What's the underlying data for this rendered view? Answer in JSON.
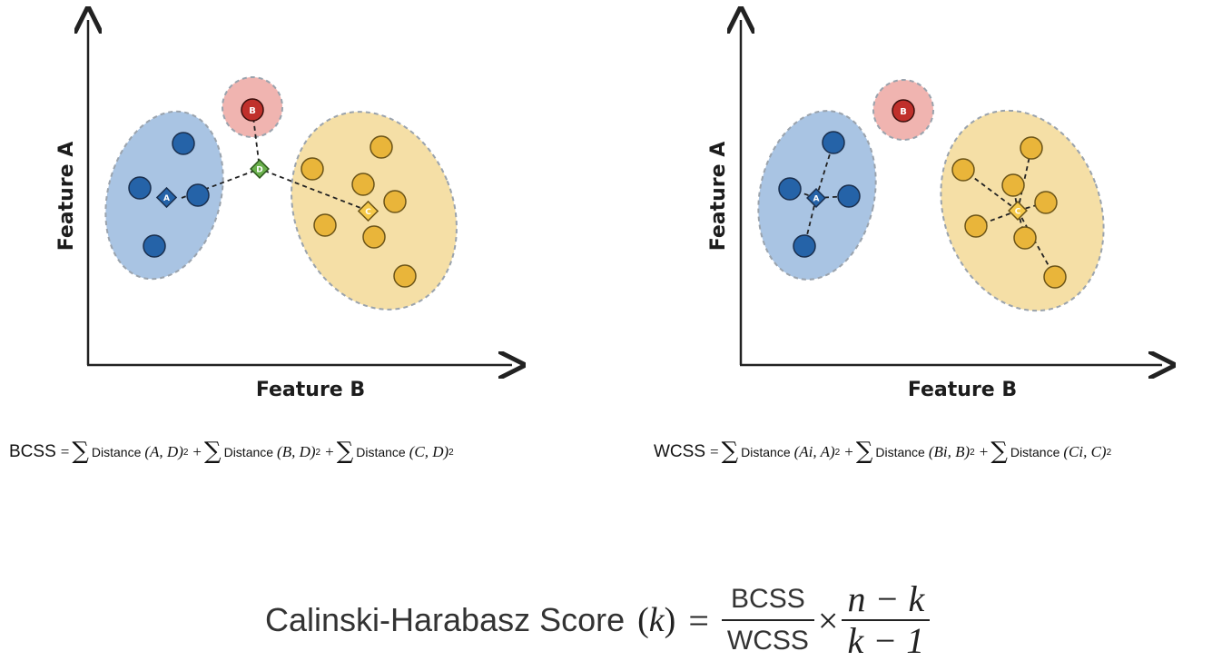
{
  "left_panel": {
    "x_axis_title": "Feature B",
    "y_axis_title": "Feature A",
    "labels": {
      "a": "A",
      "b": "B",
      "c": "C",
      "d": "D"
    }
  },
  "right_panel": {
    "x_axis_title": "Feature B",
    "y_axis_title": "Feature A",
    "labels": {
      "a": "A",
      "b": "B",
      "c": "C"
    }
  },
  "colors": {
    "blue_cluster": "#2563a8",
    "blue_fill": "#a9c4e3",
    "red_cluster": "#c0302b",
    "red_fill": "#f0b4b0",
    "yellow_cluster": "#e9b53a",
    "yellow_fill": "#f5dfa6",
    "centroid_d": "#6ab04c"
  },
  "bcss_formula": {
    "lhs": "BCSS",
    "eq": "=",
    "sum": "∑",
    "dist": "Distance",
    "plus": "+",
    "term1": "(A, D)",
    "term2": "(B, D)",
    "term3": "(C, D)",
    "exp": "2"
  },
  "wcss_formula": {
    "lhs": "WCSS",
    "eq": "=",
    "sum": "∑",
    "dist": "Distance",
    "plus": "+",
    "t1_open": "(A",
    "t1_sub": "i",
    "t1_close": ", A)",
    "t2_open": "(B",
    "t2_sub": "i",
    "t2_close": ", B)",
    "t3_open": "(C",
    "t3_sub": "i",
    "t3_close": ", C)",
    "exp": "2"
  },
  "score_formula": {
    "name": "Calinski-Harabasz Score",
    "arg": "k",
    "eq": "=",
    "times": "×",
    "frac1_num": "BCSS",
    "frac1_den": "WCSS",
    "frac2_num": "n − k",
    "frac2_den": "k − 1"
  }
}
